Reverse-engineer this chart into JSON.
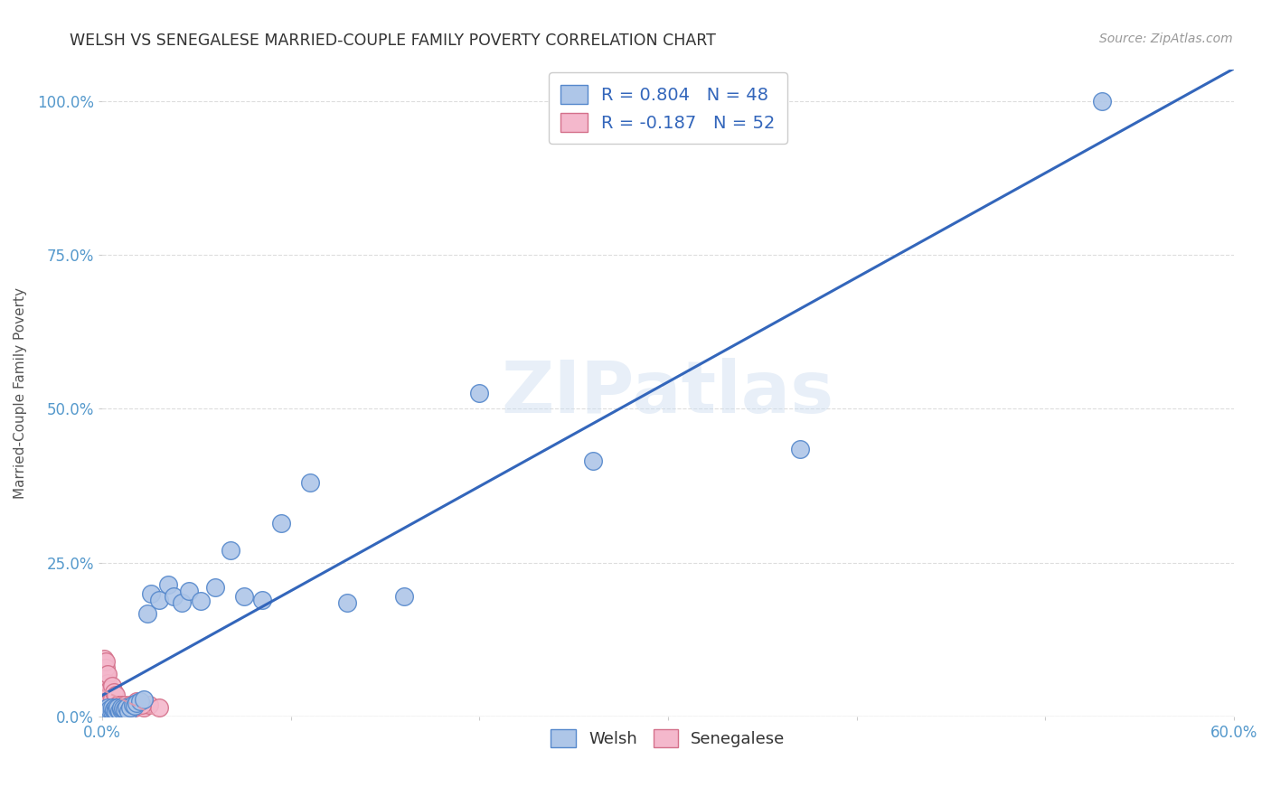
{
  "title": "WELSH VS SENEGALESE MARRIED-COUPLE FAMILY POVERTY CORRELATION CHART",
  "source": "Source: ZipAtlas.com",
  "ylabel": "Married-Couple Family Poverty",
  "xlim": [
    0,
    0.6
  ],
  "ylim": [
    0,
    1.05
  ],
  "xticks": [
    0.0,
    0.1,
    0.2,
    0.3,
    0.4,
    0.5,
    0.6
  ],
  "xticklabels": [
    "0.0%",
    "",
    "",
    "",
    "",
    "",
    "60.0%"
  ],
  "yticks": [
    0.0,
    0.25,
    0.5,
    0.75,
    1.0
  ],
  "yticklabels": [
    "0.0%",
    "25.0%",
    "50.0%",
    "75.0%",
    "100.0%"
  ],
  "welsh_color": "#aec6e8",
  "welsh_edge_color": "#5588cc",
  "senegalese_color": "#f4b8cc",
  "senegalese_edge_color": "#d4708a",
  "trendline_welsh_color": "#3366bb",
  "trendline_senegalese_color": "#e899aa",
  "welsh_R": 0.804,
  "welsh_N": 48,
  "senegalese_R": -0.187,
  "senegalese_N": 52,
  "legend_welsh_label": "Welsh",
  "legend_senegalese_label": "Senegalese",
  "watermark": "ZIPatlas",
  "welsh_x": [
    0.001,
    0.002,
    0.002,
    0.003,
    0.003,
    0.004,
    0.004,
    0.005,
    0.005,
    0.006,
    0.006,
    0.007,
    0.007,
    0.008,
    0.008,
    0.009,
    0.01,
    0.01,
    0.011,
    0.012,
    0.013,
    0.014,
    0.015,
    0.016,
    0.017,
    0.018,
    0.02,
    0.022,
    0.024,
    0.026,
    0.03,
    0.035,
    0.038,
    0.042,
    0.046,
    0.052,
    0.06,
    0.068,
    0.075,
    0.085,
    0.095,
    0.11,
    0.13,
    0.16,
    0.2,
    0.26,
    0.37,
    0.53
  ],
  "welsh_y": [
    0.01,
    0.008,
    0.012,
    0.01,
    0.015,
    0.008,
    0.012,
    0.01,
    0.015,
    0.01,
    0.012,
    0.015,
    0.01,
    0.012,
    0.015,
    0.01,
    0.012,
    0.015,
    0.013,
    0.012,
    0.015,
    0.01,
    0.015,
    0.02,
    0.018,
    0.022,
    0.025,
    0.028,
    0.168,
    0.2,
    0.19,
    0.215,
    0.195,
    0.185,
    0.205,
    0.188,
    0.21,
    0.27,
    0.195,
    0.19,
    0.315,
    0.38,
    0.185,
    0.195,
    0.525,
    0.415,
    0.435,
    1.0
  ],
  "senegalese_x": [
    0.001,
    0.001,
    0.001,
    0.001,
    0.001,
    0.001,
    0.001,
    0.001,
    0.001,
    0.001,
    0.001,
    0.001,
    0.001,
    0.002,
    0.002,
    0.002,
    0.002,
    0.002,
    0.002,
    0.002,
    0.002,
    0.003,
    0.003,
    0.003,
    0.003,
    0.003,
    0.004,
    0.004,
    0.004,
    0.005,
    0.005,
    0.005,
    0.006,
    0.006,
    0.007,
    0.007,
    0.008,
    0.009,
    0.01,
    0.011,
    0.012,
    0.013,
    0.015,
    0.017,
    0.019,
    0.022,
    0.025,
    0.03,
    0.018,
    0.021,
    0.012,
    0.014
  ],
  "senegalese_y": [
    0.01,
    0.02,
    0.03,
    0.045,
    0.055,
    0.065,
    0.075,
    0.085,
    0.095,
    0.005,
    0.015,
    0.025,
    0.04,
    0.05,
    0.06,
    0.07,
    0.08,
    0.09,
    0.01,
    0.02,
    0.035,
    0.015,
    0.025,
    0.04,
    0.055,
    0.07,
    0.01,
    0.025,
    0.045,
    0.015,
    0.03,
    0.05,
    0.02,
    0.04,
    0.015,
    0.035,
    0.02,
    0.015,
    0.02,
    0.015,
    0.02,
    0.015,
    0.02,
    0.015,
    0.02,
    0.015,
    0.02,
    0.015,
    0.025,
    0.02,
    0.01,
    0.015
  ],
  "background_color": "#ffffff",
  "grid_color": "#dddddd",
  "tick_color": "#5599cc",
  "title_color": "#333333",
  "axis_color": "#cccccc"
}
